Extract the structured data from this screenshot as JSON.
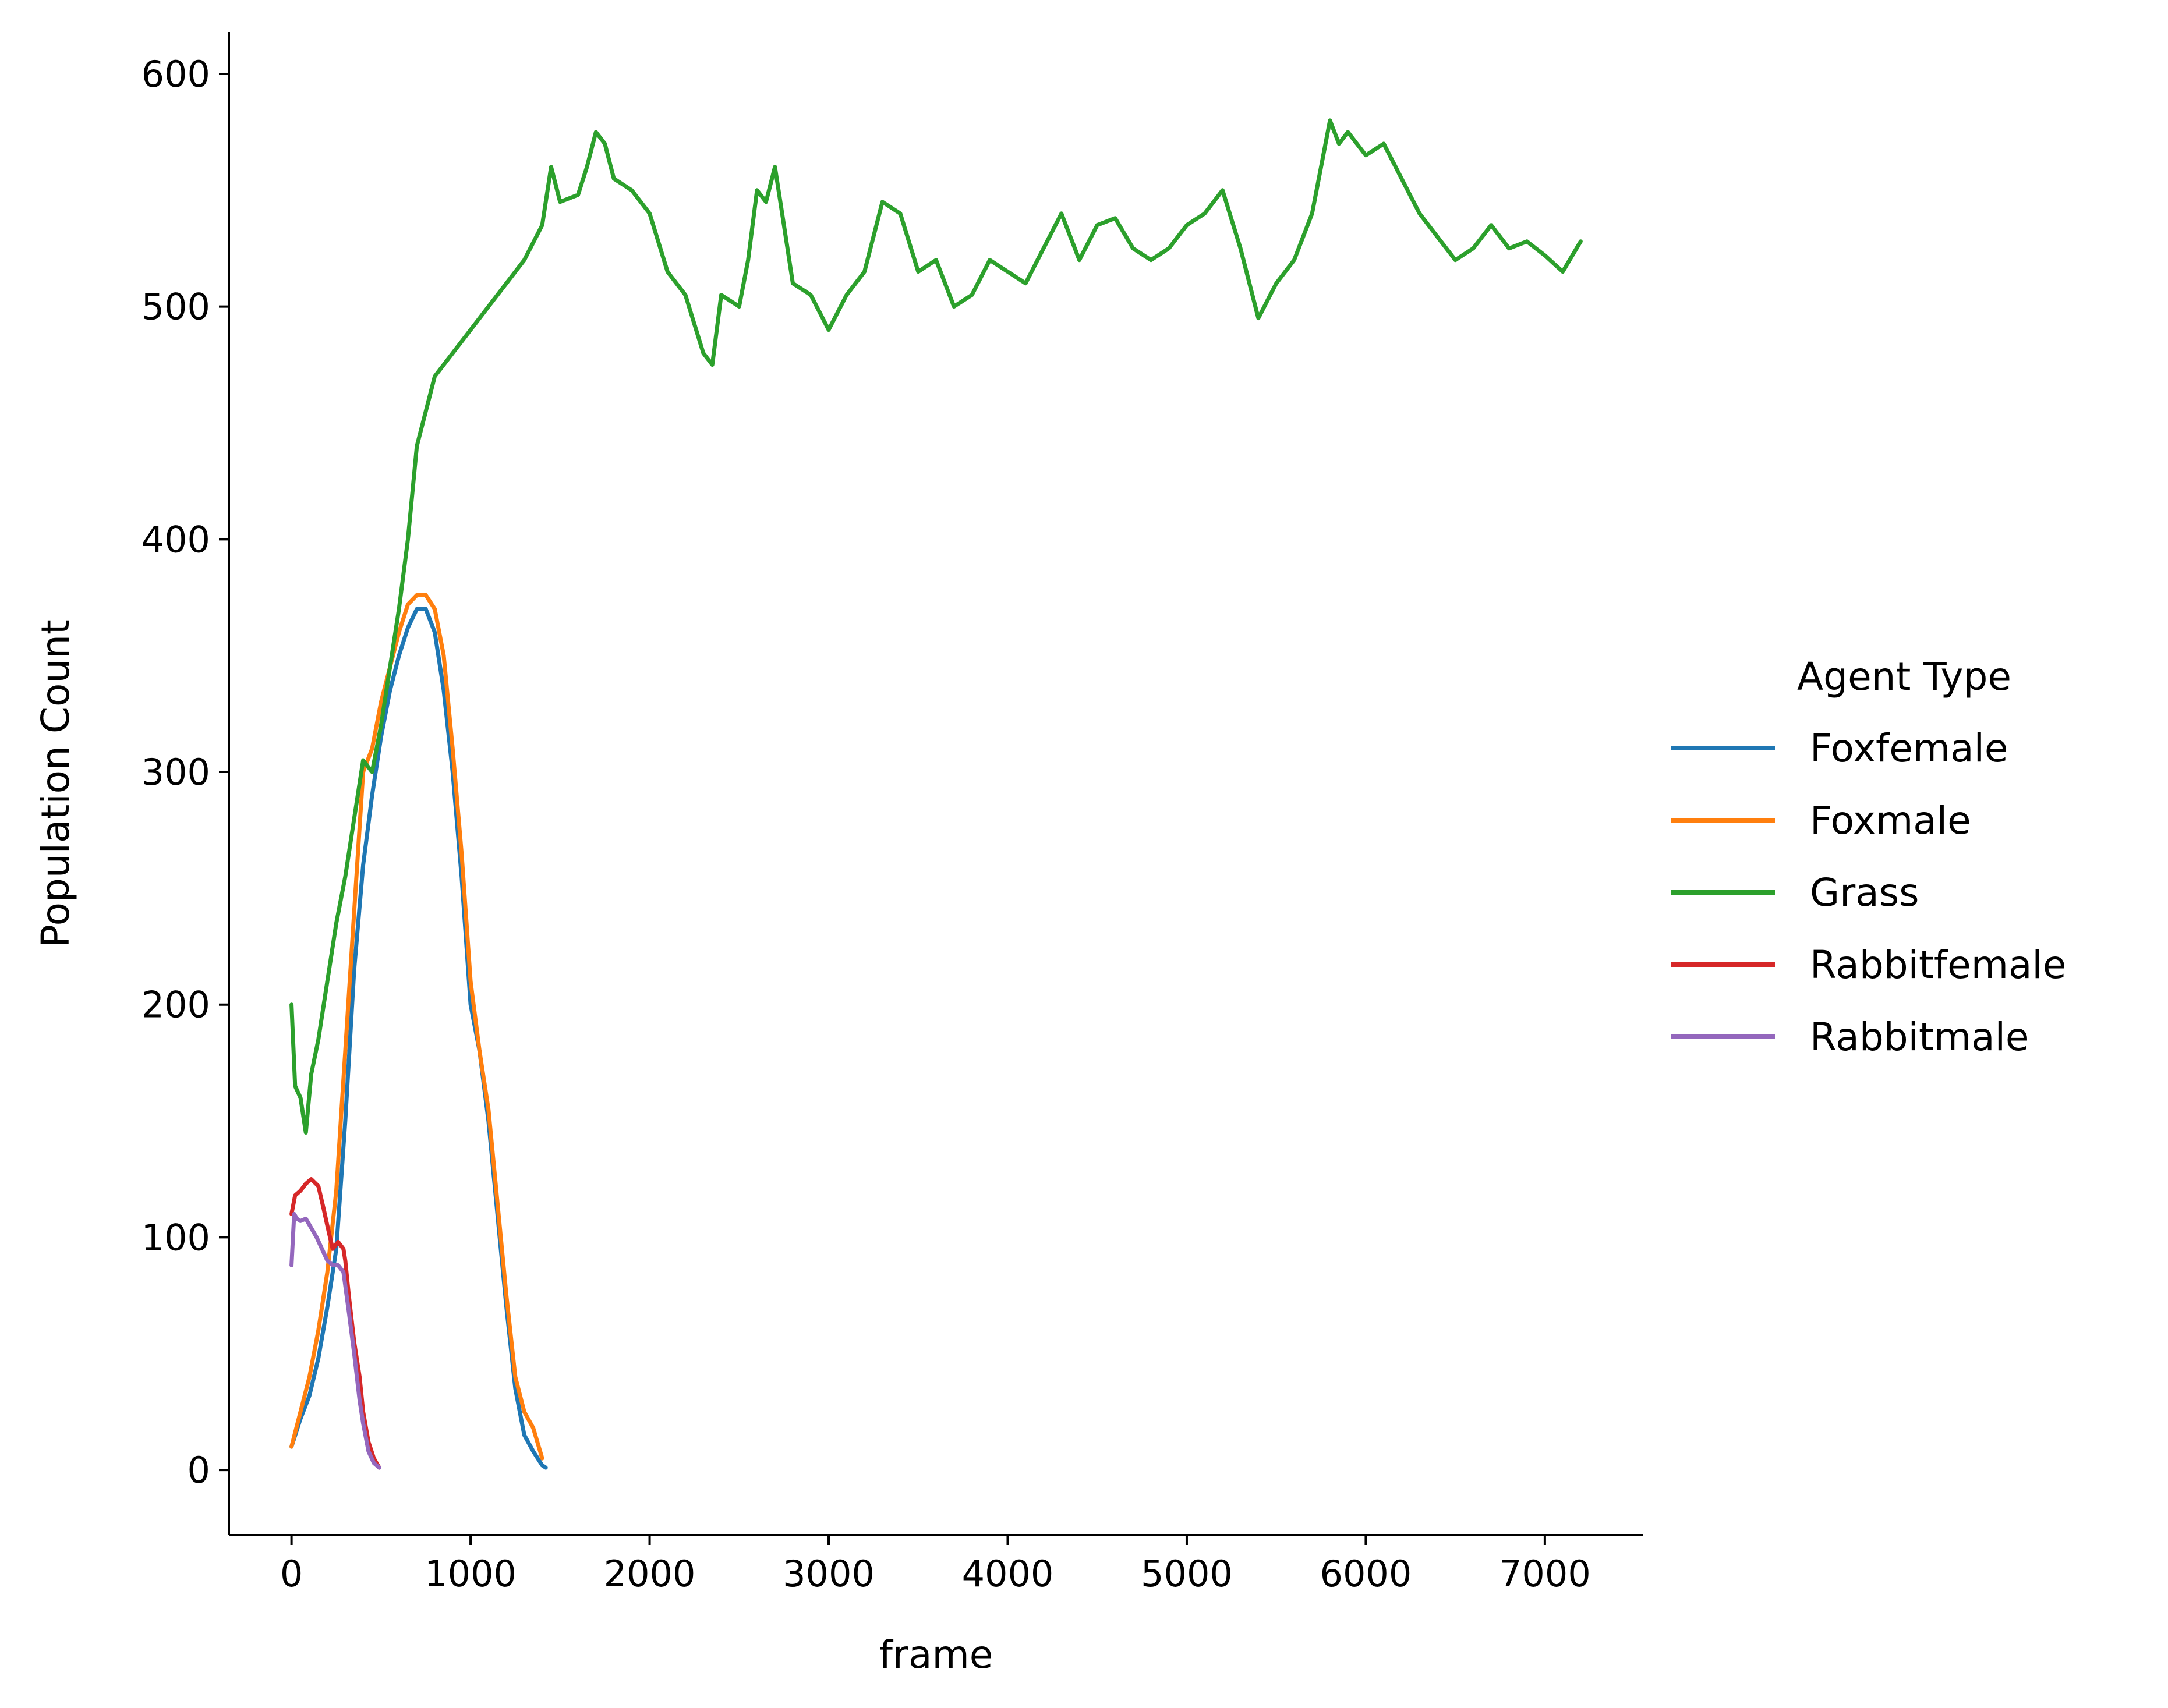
{
  "chart_data": {
    "type": "line",
    "xlabel": "frame",
    "ylabel": "Population Count",
    "xlim": [
      -350,
      7550
    ],
    "ylim": [
      -28,
      618
    ],
    "xticks": [
      0,
      1000,
      2000,
      3000,
      4000,
      5000,
      6000,
      7000
    ],
    "xtick_labels": [
      "0",
      "1000",
      "2000",
      "3000",
      "4000",
      "5000",
      "6000",
      "7000"
    ],
    "yticks": [
      0,
      100,
      200,
      300,
      400,
      500,
      600
    ],
    "ytick_labels": [
      "0",
      "100",
      "200",
      "300",
      "400",
      "500",
      "600"
    ],
    "grid": false,
    "legend": {
      "title": "Agent Type",
      "placement": "right"
    },
    "series": [
      {
        "name": "Foxfemale",
        "color": "#1f77b4",
        "points": [
          [
            0,
            10
          ],
          [
            50,
            22
          ],
          [
            100,
            32
          ],
          [
            150,
            48
          ],
          [
            200,
            70
          ],
          [
            250,
            95
          ],
          [
            300,
            150
          ],
          [
            350,
            215
          ],
          [
            400,
            260
          ],
          [
            450,
            290
          ],
          [
            500,
            315
          ],
          [
            550,
            335
          ],
          [
            600,
            350
          ],
          [
            650,
            362
          ],
          [
            700,
            370
          ],
          [
            750,
            370
          ],
          [
            800,
            360
          ],
          [
            850,
            335
          ],
          [
            900,
            300
          ],
          [
            950,
            255
          ],
          [
            1000,
            200
          ],
          [
            1050,
            180
          ],
          [
            1100,
            150
          ],
          [
            1150,
            110
          ],
          [
            1200,
            70
          ],
          [
            1250,
            35
          ],
          [
            1300,
            15
          ],
          [
            1350,
            8
          ],
          [
            1400,
            2
          ],
          [
            1420,
            1
          ]
        ]
      },
      {
        "name": "Foxmale",
        "color": "#ff7f0e",
        "points": [
          [
            0,
            10
          ],
          [
            50,
            25
          ],
          [
            100,
            40
          ],
          [
            150,
            60
          ],
          [
            200,
            85
          ],
          [
            250,
            120
          ],
          [
            300,
            180
          ],
          [
            350,
            240
          ],
          [
            400,
            300
          ],
          [
            450,
            310
          ],
          [
            500,
            330
          ],
          [
            550,
            345
          ],
          [
            600,
            360
          ],
          [
            650,
            372
          ],
          [
            700,
            376
          ],
          [
            750,
            376
          ],
          [
            800,
            370
          ],
          [
            850,
            350
          ],
          [
            900,
            310
          ],
          [
            950,
            265
          ],
          [
            1000,
            210
          ],
          [
            1050,
            180
          ],
          [
            1100,
            155
          ],
          [
            1150,
            115
          ],
          [
            1200,
            75
          ],
          [
            1250,
            40
          ],
          [
            1300,
            25
          ],
          [
            1350,
            18
          ],
          [
            1400,
            5
          ]
        ]
      },
      {
        "name": "Grass",
        "color": "#2ca02c",
        "points": [
          [
            0,
            200
          ],
          [
            20,
            165
          ],
          [
            50,
            160
          ],
          [
            80,
            145
          ],
          [
            110,
            170
          ],
          [
            150,
            185
          ],
          [
            200,
            210
          ],
          [
            250,
            235
          ],
          [
            300,
            255
          ],
          [
            350,
            280
          ],
          [
            400,
            305
          ],
          [
            450,
            300
          ],
          [
            500,
            320
          ],
          [
            550,
            345
          ],
          [
            600,
            370
          ],
          [
            650,
            400
          ],
          [
            700,
            440
          ],
          [
            750,
            455
          ],
          [
            800,
            470
          ],
          [
            900,
            480
          ],
          [
            1000,
            490
          ],
          [
            1100,
            500
          ],
          [
            1200,
            510
          ],
          [
            1300,
            520
          ],
          [
            1400,
            535
          ],
          [
            1450,
            560
          ],
          [
            1500,
            545
          ],
          [
            1600,
            548
          ],
          [
            1650,
            560
          ],
          [
            1700,
            575
          ],
          [
            1750,
            570
          ],
          [
            1800,
            555
          ],
          [
            1900,
            550
          ],
          [
            2000,
            540
          ],
          [
            2100,
            515
          ],
          [
            2200,
            505
          ],
          [
            2300,
            480
          ],
          [
            2350,
            475
          ],
          [
            2400,
            505
          ],
          [
            2500,
            500
          ],
          [
            2550,
            520
          ],
          [
            2600,
            550
          ],
          [
            2650,
            545
          ],
          [
            2700,
            560
          ],
          [
            2750,
            535
          ],
          [
            2800,
            510
          ],
          [
            2900,
            505
          ],
          [
            3000,
            490
          ],
          [
            3100,
            505
          ],
          [
            3200,
            515
          ],
          [
            3300,
            545
          ],
          [
            3400,
            540
          ],
          [
            3500,
            515
          ],
          [
            3600,
            520
          ],
          [
            3700,
            500
          ],
          [
            3800,
            505
          ],
          [
            3900,
            520
          ],
          [
            4000,
            515
          ],
          [
            4100,
            510
          ],
          [
            4200,
            525
          ],
          [
            4300,
            540
          ],
          [
            4400,
            520
          ],
          [
            4500,
            535
          ],
          [
            4600,
            538
          ],
          [
            4700,
            525
          ],
          [
            4800,
            520
          ],
          [
            4900,
            525
          ],
          [
            5000,
            535
          ],
          [
            5100,
            540
          ],
          [
            5200,
            550
          ],
          [
            5300,
            525
          ],
          [
            5350,
            510
          ],
          [
            5400,
            495
          ],
          [
            5500,
            510
          ],
          [
            5600,
            520
          ],
          [
            5700,
            540
          ],
          [
            5800,
            580
          ],
          [
            5850,
            570
          ],
          [
            5900,
            575
          ],
          [
            6000,
            565
          ],
          [
            6100,
            570
          ],
          [
            6200,
            555
          ],
          [
            6300,
            540
          ],
          [
            6400,
            530
          ],
          [
            6500,
            520
          ],
          [
            6600,
            525
          ],
          [
            6700,
            535
          ],
          [
            6800,
            525
          ],
          [
            6900,
            528
          ],
          [
            7000,
            522
          ],
          [
            7100,
            515
          ],
          [
            7200,
            528
          ]
        ]
      },
      {
        "name": "Rabbitfemale",
        "color": "#d62728",
        "points": [
          [
            0,
            110
          ],
          [
            20,
            118
          ],
          [
            50,
            120
          ],
          [
            80,
            123
          ],
          [
            110,
            125
          ],
          [
            150,
            122
          ],
          [
            180,
            112
          ],
          [
            200,
            105
          ],
          [
            230,
            95
          ],
          [
            260,
            98
          ],
          [
            290,
            95
          ],
          [
            300,
            90
          ],
          [
            320,
            75
          ],
          [
            350,
            55
          ],
          [
            380,
            40
          ],
          [
            400,
            25
          ],
          [
            430,
            12
          ],
          [
            460,
            5
          ],
          [
            490,
            1
          ]
        ]
      },
      {
        "name": "Rabbitmale",
        "color": "#9467bd",
        "points": [
          [
            0,
            88
          ],
          [
            15,
            110
          ],
          [
            30,
            108
          ],
          [
            50,
            107
          ],
          [
            80,
            108
          ],
          [
            110,
            104
          ],
          [
            140,
            100
          ],
          [
            170,
            95
          ],
          [
            200,
            90
          ],
          [
            230,
            88
          ],
          [
            260,
            88
          ],
          [
            290,
            85
          ],
          [
            320,
            68
          ],
          [
            350,
            50
          ],
          [
            380,
            30
          ],
          [
            400,
            20
          ],
          [
            430,
            8
          ],
          [
            460,
            3
          ],
          [
            490,
            1
          ]
        ]
      }
    ]
  }
}
